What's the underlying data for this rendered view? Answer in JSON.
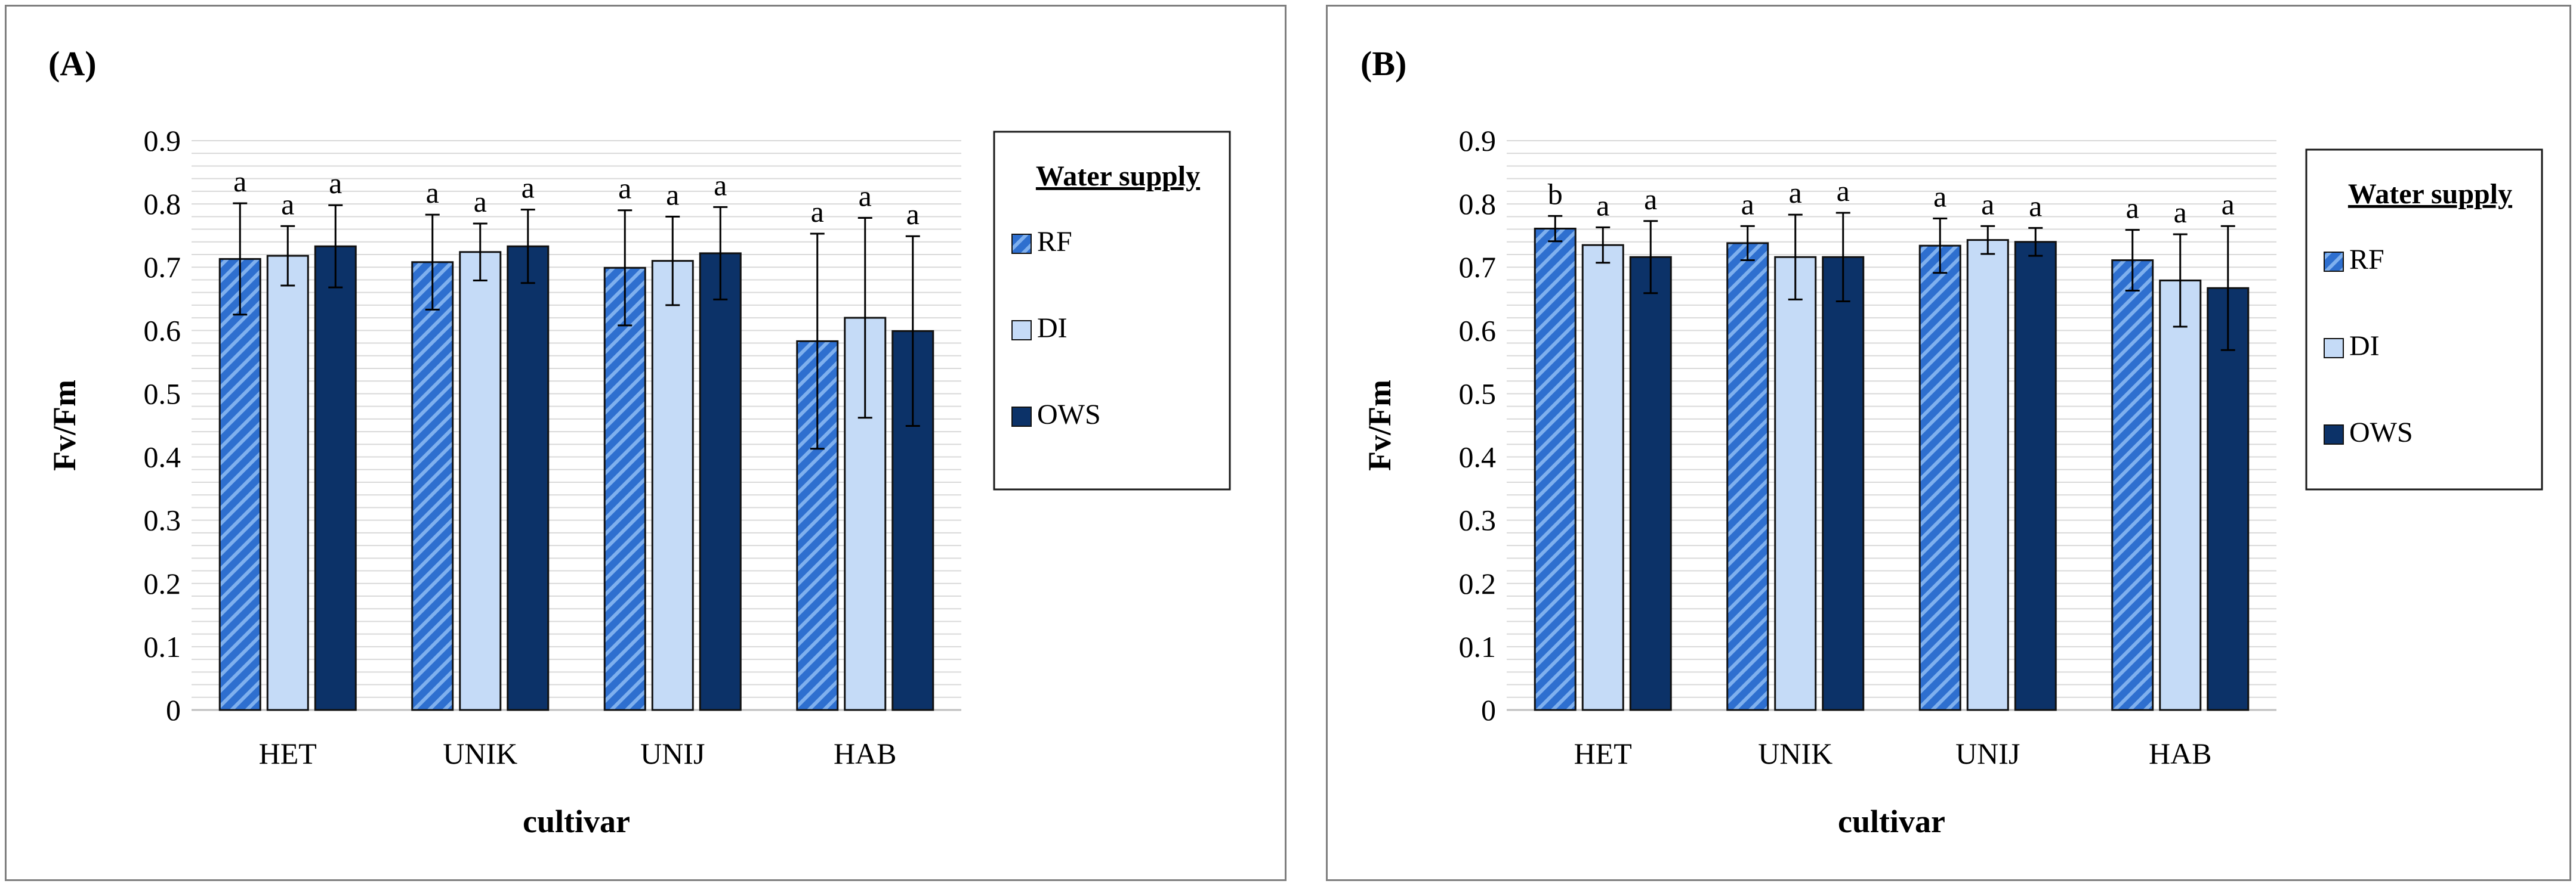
{
  "chart_data": [
    {
      "type": "bar",
      "panel": "(A)",
      "categories": [
        "HET",
        "UNIK",
        "UNIJ",
        "HAB"
      ],
      "series": [
        {
          "name": "RF",
          "values": [
            0.713,
            0.708,
            0.699,
            0.583
          ],
          "errors": [
            0.088,
            0.075,
            0.091,
            0.17
          ],
          "letters": [
            "a",
            "a",
            "a",
            "a"
          ]
        },
        {
          "name": "DI",
          "values": [
            0.718,
            0.724,
            0.71,
            0.62
          ],
          "errors": [
            0.047,
            0.045,
            0.07,
            0.158
          ],
          "letters": [
            "a",
            "a",
            "a",
            "a"
          ]
        },
        {
          "name": "OWS",
          "values": [
            0.733,
            0.733,
            0.722,
            0.599
          ],
          "errors": [
            0.065,
            0.058,
            0.073,
            0.15
          ],
          "letters": [
            "a",
            "a",
            "a",
            "a"
          ]
        }
      ],
      "xlabel": "cultivar",
      "ylabel": "Fv/Fm",
      "ylim": [
        0,
        0.9
      ],
      "yticks": [
        "0",
        "0.1",
        "0.2",
        "0.3",
        "0.4",
        "0.5",
        "0.6",
        "0.7",
        "0.8",
        "0.9"
      ],
      "legend_title": "Water supply",
      "legend_position": "right",
      "grid": true
    },
    {
      "type": "bar",
      "panel": "(B)",
      "categories": [
        "HET",
        "UNIK",
        "UNIJ",
        "HAB"
      ],
      "series": [
        {
          "name": "RF",
          "values": [
            0.761,
            0.738,
            0.734,
            0.711
          ],
          "errors": [
            0.02,
            0.027,
            0.043,
            0.048
          ],
          "letters": [
            "b",
            "a",
            "a",
            "a"
          ]
        },
        {
          "name": "DI",
          "values": [
            0.735,
            0.716,
            0.743,
            0.679
          ],
          "errors": [
            0.028,
            0.067,
            0.022,
            0.073
          ],
          "letters": [
            "a",
            "a",
            "a",
            "a"
          ]
        },
        {
          "name": "OWS",
          "values": [
            0.716,
            0.716,
            0.74,
            0.667
          ],
          "errors": [
            0.057,
            0.07,
            0.022,
            0.098
          ],
          "letters": [
            "a",
            "a",
            "a",
            "a"
          ]
        }
      ],
      "xlabel": "cultivar",
      "ylabel": "Fv/Fm",
      "ylim": [
        0,
        0.9
      ],
      "yticks": [
        "0",
        "0.1",
        "0.2",
        "0.3",
        "0.4",
        "0.5",
        "0.6",
        "0.7",
        "0.8",
        "0.9"
      ],
      "legend_title": "Water supply",
      "legend_position": "right",
      "grid": true
    }
  ],
  "colors": {
    "RF": "#2e6fcf",
    "RF_hatch": "#7fb0ee",
    "DI": "#c5dbf7",
    "OWS": "#0c3268",
    "bar_edge": "#111111",
    "grid": "#d9d9d9"
  }
}
